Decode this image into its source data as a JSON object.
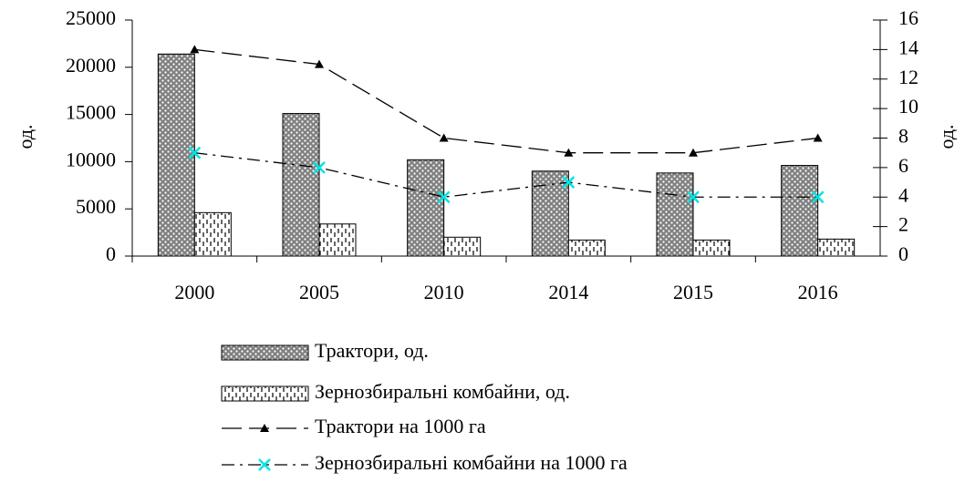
{
  "chart_data": {
    "type": "bar",
    "categories": [
      "2000",
      "2005",
      "2010",
      "2014",
      "2015",
      "2016"
    ],
    "y_label": "од.",
    "y2_label": "од.",
    "ylim": [
      0,
      25000
    ],
    "yticks": [
      0,
      5000,
      10000,
      15000,
      20000,
      25000
    ],
    "y2lim": [
      0,
      16
    ],
    "y2ticks": [
      0,
      2,
      4,
      6,
      8,
      10,
      12,
      14,
      16
    ],
    "series": [
      {
        "name": "Трактори, од.",
        "type": "bar",
        "color": "#808080",
        "values": [
          21400,
          15100,
          10200,
          9000,
          8800,
          9600
        ]
      },
      {
        "name": "Зернозбиральні комбайни, од.",
        "type": "bar",
        "color": "#ffffff",
        "values": [
          4600,
          3400,
          2000,
          1700,
          1700,
          1800
        ]
      },
      {
        "name": "Трактори на 1000 га",
        "type": "line",
        "axis": "y2",
        "color": "#000000",
        "marker": "triangle",
        "linestyle": "dashed",
        "values": [
          14,
          13,
          8,
          7,
          7,
          8
        ]
      },
      {
        "name": "Зернозбиральні комбайни на 1000 га",
        "type": "line",
        "axis": "y2",
        "color": "#000000",
        "marker_color": "#00e5e5",
        "marker": "x",
        "linestyle": "dashdot",
        "values": [
          7,
          6,
          4,
          5,
          4,
          4
        ]
      }
    ]
  }
}
